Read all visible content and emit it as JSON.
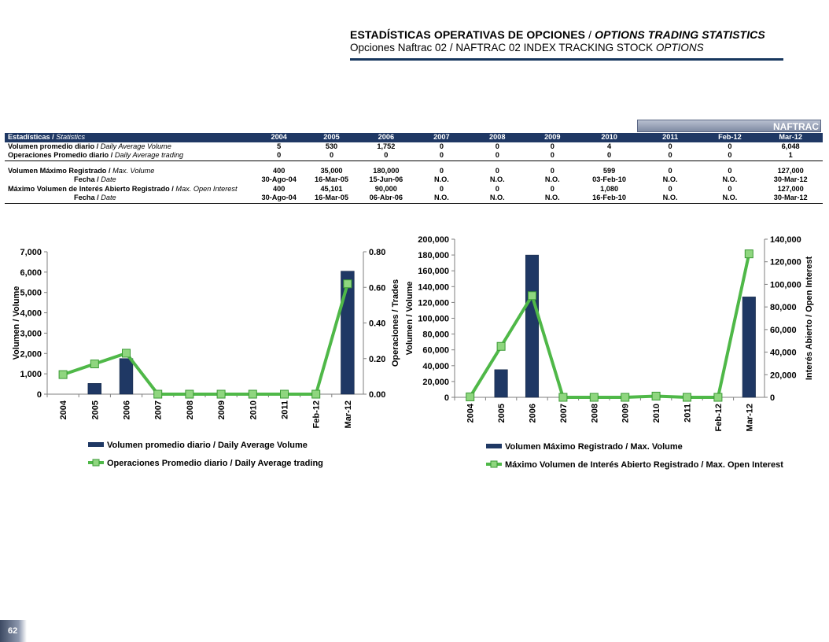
{
  "header": {
    "title_es": "ESTADÍSTICAS OPERATIVAS DE OPCIONES",
    "title_sep": " / ",
    "title_en": "OPTIONS TRADING STATISTICS",
    "subtitle_es": "Opciones Naftrac 02",
    "subtitle_sep": " / ",
    "subtitle_en": "NAFTRAC 02 INDEX TRACKING STOCK",
    "subtitle_en_italic": "OPTIONS"
  },
  "naftrac_label": "NAFTRAC",
  "table": {
    "head_es": "Estadísticas",
    "head_en": "Statistics",
    "columns": [
      "2004",
      "2005",
      "2006",
      "2007",
      "2008",
      "2009",
      "2010",
      "2011",
      "Feb-12",
      "Mar-12"
    ],
    "rows": [
      {
        "es": "Volumen promedio diario",
        "en": "Daily Average Volume",
        "values": [
          "5",
          "530",
          "1,752",
          "0",
          "0",
          "0",
          "4",
          "0",
          "0",
          "6,048"
        ]
      },
      {
        "es": "Operaciones Promedio diario",
        "en": "Daily Average trading",
        "values": [
          "0",
          "0",
          "0",
          "0",
          "0",
          "0",
          "0",
          "0",
          "0",
          "1"
        ]
      },
      {
        "es": "Volumen Máximo Registrado",
        "en": "Max. Volume",
        "values": [
          "400",
          "35,000",
          "180,000",
          "0",
          "0",
          "0",
          "599",
          "0",
          "0",
          "127,000"
        ]
      },
      {
        "es": "Fecha",
        "en": "Date",
        "values": [
          "30-Ago-04",
          "16-Mar-05",
          "15-Jun-06",
          "N.O.",
          "N.O.",
          "N.O.",
          "03-Feb-10",
          "N.O.",
          "N.O.",
          "30-Mar-12"
        ]
      },
      {
        "es": "Máximo Volumen de Interés Abierto Registrado",
        "en": "Max. Open Interest",
        "values": [
          "400",
          "45,101",
          "90,000",
          "0",
          "0",
          "0",
          "1,080",
          "0",
          "0",
          "127,000"
        ]
      },
      {
        "es": "Fecha",
        "en": "Date",
        "values": [
          "30-Ago-04",
          "16-Mar-05",
          "06-Abr-06",
          "N.O.",
          "N.O.",
          "N.O.",
          "16-Feb-10",
          "N.O.",
          "N.O.",
          "30-Mar-12"
        ]
      }
    ]
  },
  "chart_data": [
    {
      "type": "bar",
      "categories": [
        "2004",
        "2005",
        "2006",
        "2007",
        "2008",
        "2009",
        "2010",
        "2011",
        "Feb-12",
        "Mar-12"
      ],
      "series": [
        {
          "name": "Volumen promedio diario / Daily Average Volume",
          "kind": "bar",
          "axis": "left",
          "values": [
            5,
            530,
            1752,
            0,
            0,
            0,
            4,
            0,
            0,
            6048
          ]
        },
        {
          "name": "Operaciones Promedio diario / Daily Average trading",
          "kind": "line",
          "axis": "right",
          "values": [
            0.11,
            0.17,
            0.23,
            0,
            0,
            0,
            0,
            0,
            0,
            0.62
          ]
        }
      ],
      "ylabel": "Volumen / Volume",
      "ylabel_right": "Operaciones / Trades",
      "ylim": [
        0,
        7000
      ],
      "ylim_right": [
        0,
        0.8
      ],
      "yticks": [
        "0",
        "1,000",
        "2,000",
        "3,000",
        "4,000",
        "5,000",
        "6,000",
        "7,000"
      ],
      "yticks_right": [
        "0.00",
        "0.20",
        "0.40",
        "0.60",
        "0.80"
      ],
      "legend_position": "bottom",
      "grid": false,
      "colors": {
        "bar": "#1f3864",
        "line": "#4fb848"
      }
    },
    {
      "type": "bar",
      "categories": [
        "2004",
        "2005",
        "2006",
        "2007",
        "2008",
        "2009",
        "2010",
        "2011",
        "Feb-12",
        "Mar-12"
      ],
      "series": [
        {
          "name": "Volumen Máximo Registrado / Max. Volume",
          "kind": "bar",
          "axis": "left",
          "values": [
            400,
            35000,
            180000,
            0,
            0,
            0,
            599,
            0,
            0,
            127000
          ]
        },
        {
          "name": "Máximo Volumen de Interés Abierto Registrado / Max. Open Interest",
          "kind": "line",
          "axis": "right",
          "values": [
            400,
            45101,
            90000,
            0,
            0,
            0,
            1080,
            0,
            0,
            127000
          ]
        }
      ],
      "ylabel": "Volumen / Volume",
      "ylabel_right": "Interés Abierto / Open Interest",
      "ylim": [
        0,
        200000
      ],
      "ylim_right": [
        0,
        140000
      ],
      "yticks": [
        "0",
        "20,000",
        "40,000",
        "60,000",
        "80,000",
        "100,000",
        "120,000",
        "140,000",
        "160,000",
        "180,000",
        "200,000"
      ],
      "yticks_right": [
        "0",
        "20,000",
        "40,000",
        "60,000",
        "80,000",
        "100,000",
        "120,000",
        "140,000"
      ],
      "legend_position": "bottom",
      "grid": false,
      "colors": {
        "bar": "#1f3864",
        "line": "#4fb848"
      }
    }
  ],
  "page_number": "62"
}
